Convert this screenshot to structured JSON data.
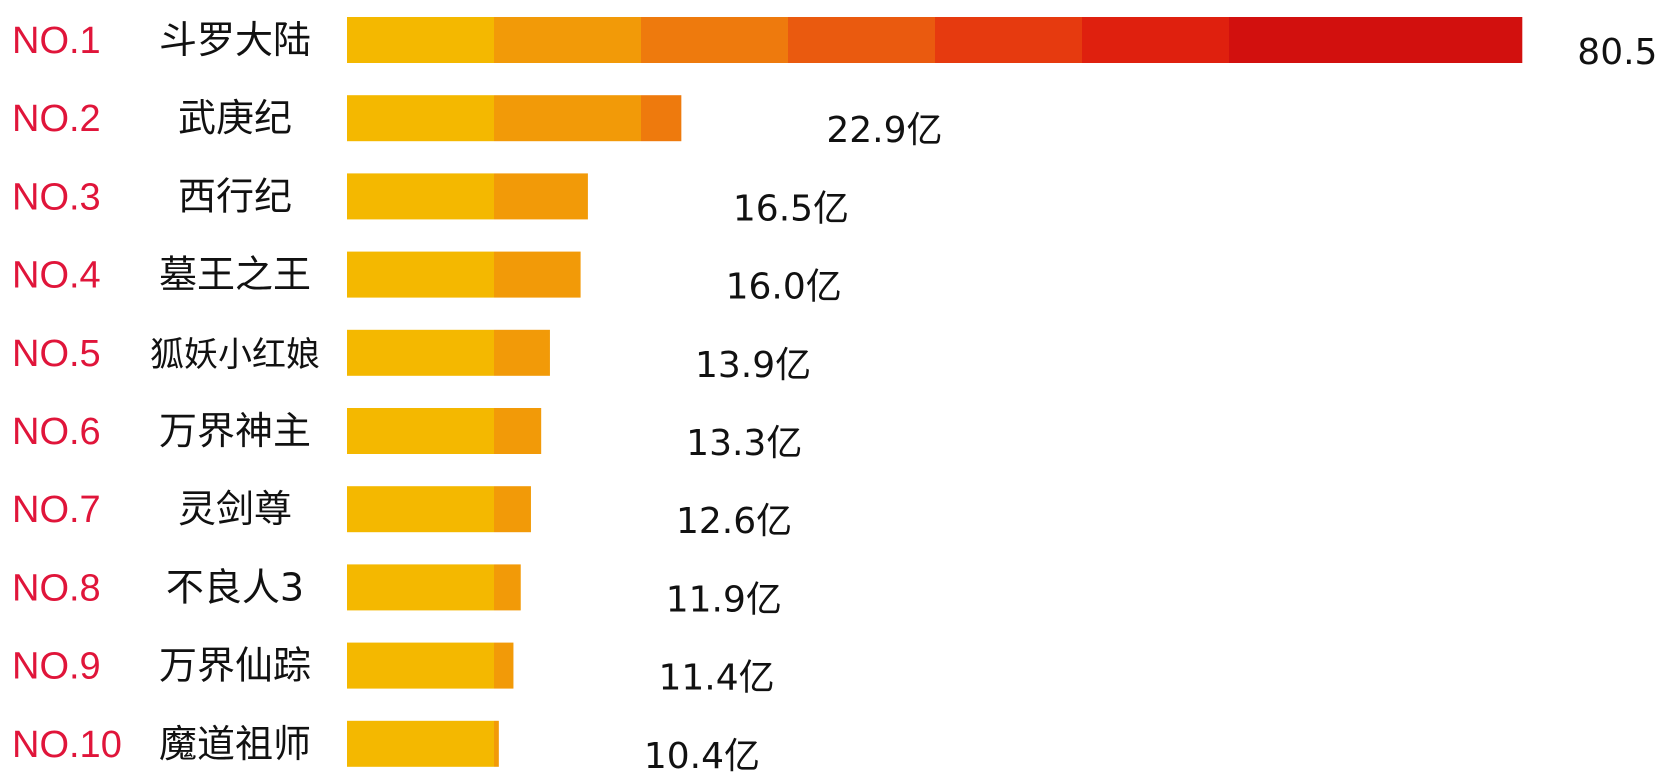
{
  "chart_data": {
    "type": "bar",
    "orientation": "horizontal",
    "title": "",
    "xlabel": "",
    "ylabel": "",
    "grid": false,
    "legend": "none",
    "unit_suffix": "亿",
    "ranks": [
      "NO.1",
      "NO.2",
      "NO.3",
      "NO.4",
      "NO.5",
      "NO.6",
      "NO.7",
      "NO.8",
      "NO.9",
      "NO.10"
    ],
    "categories": [
      "斗罗大陆",
      "武庚纪",
      "西行纪",
      "墓王之王",
      "狐妖小红娘",
      "万界神主",
      "灵剑尊",
      "不良人3",
      "万界仙踪",
      "魔道祖师"
    ],
    "values": [
      80.5,
      22.9,
      16.5,
      16.0,
      13.9,
      13.3,
      12.6,
      11.9,
      11.4,
      10.4
    ],
    "value_labels": [
      "80.5",
      "22.9亿",
      "16.5亿",
      "16.0亿",
      "13.9亿",
      "13.3亿",
      "12.6亿",
      "11.9亿",
      "11.4亿",
      "10.4亿"
    ],
    "xlim": [
      0,
      81
    ],
    "colors": {
      "rank_text": "#e0153a",
      "gradient": [
        "#f4b800",
        "#f29a08",
        "#ee7a0d",
        "#ea5a0f",
        "#e63a0f",
        "#df200e",
        "#d2100e"
      ]
    }
  }
}
